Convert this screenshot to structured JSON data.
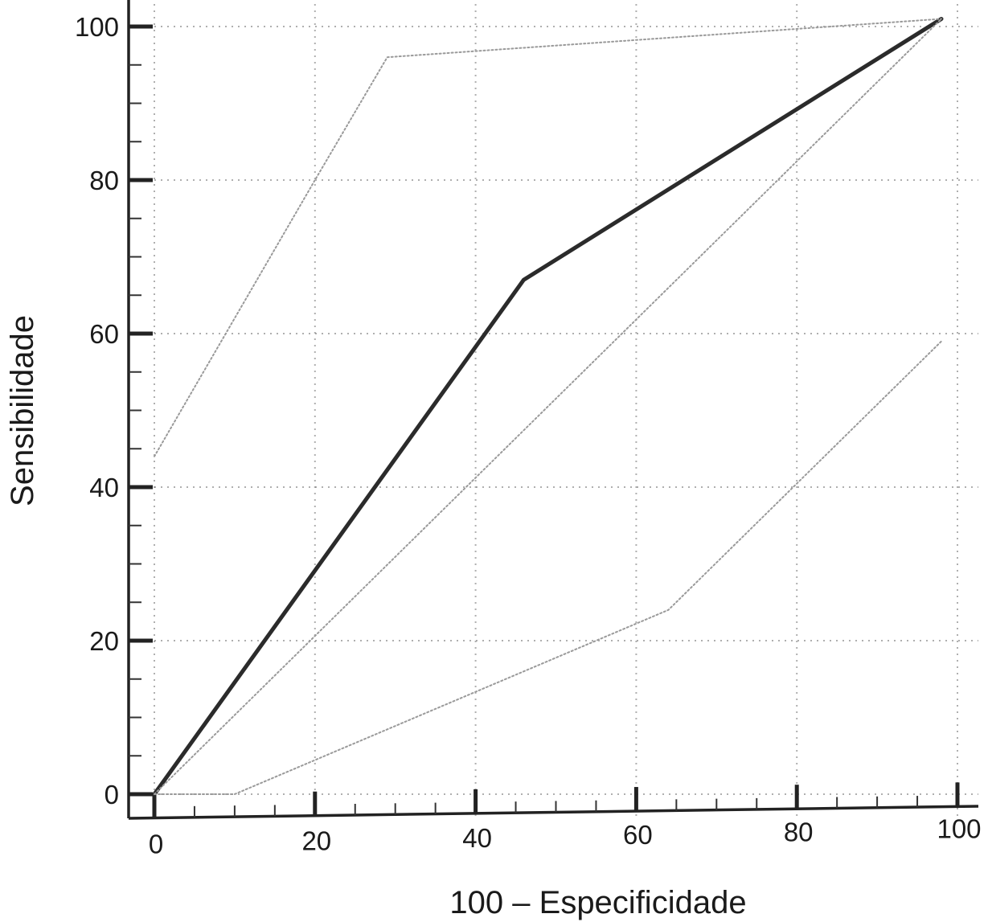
{
  "chart_data": {
    "type": "line",
    "title": "",
    "xlabel": "100 – Especificidade",
    "ylabel": "Sensibilidade",
    "xlim": [
      0,
      100
    ],
    "ylim": [
      0,
      100
    ],
    "x_ticks": [
      "0",
      "20",
      "40",
      "60",
      "80",
      "100"
    ],
    "y_ticks": [
      "0",
      "20",
      "40",
      "60",
      "80",
      "100"
    ],
    "grid": true,
    "legend": "none",
    "series": [
      {
        "style": "solid",
        "color": "#2b2b2b",
        "points": [
          [
            0,
            0
          ],
          [
            46,
            67
          ],
          [
            98,
            101
          ]
        ]
      },
      {
        "style": "dotted",
        "color": "#9a9a9a",
        "points": [
          [
            0,
            44
          ],
          [
            20,
            80
          ],
          [
            29,
            96
          ],
          [
            98,
            101
          ]
        ]
      },
      {
        "style": "dotted",
        "color": "#9a9a9a",
        "points": [
          [
            0,
            0
          ],
          [
            98,
            101
          ]
        ]
      },
      {
        "style": "dotted",
        "color": "#9a9a9a",
        "points": [
          [
            0,
            0
          ],
          [
            10,
            0
          ],
          [
            64,
            24
          ],
          [
            98,
            59
          ]
        ]
      }
    ]
  }
}
